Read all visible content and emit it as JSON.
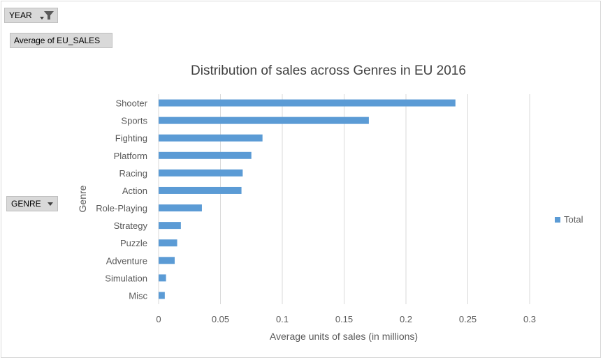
{
  "controls": {
    "year_label": "YEAR",
    "measure_label": "Average of EU_SALES",
    "genre_label": "GENRE"
  },
  "colors": {
    "bar": "#5b9bd5",
    "grid": "#d9d9d9",
    "text": "#595959",
    "title": "#404040"
  },
  "chart_data": {
    "type": "bar",
    "orientation": "horizontal",
    "title": "Distribution of sales across Genres in EU 2016",
    "xlabel": "Average units of sales (in millions)",
    "ylabel": "Genre",
    "xlim": [
      0,
      0.3
    ],
    "xticks": [
      0,
      0.05,
      0.1,
      0.15,
      0.2,
      0.25,
      0.3
    ],
    "xtick_labels": [
      "0",
      "0.05",
      "0.1",
      "0.15",
      "0.2",
      "0.25",
      "0.3"
    ],
    "grid": "vertical",
    "legend_position": "right",
    "categories": [
      "Shooter",
      "Sports",
      "Fighting",
      "Platform",
      "Racing",
      "Action",
      "Role-Playing",
      "Strategy",
      "Puzzle",
      "Adventure",
      "Simulation",
      "Misc"
    ],
    "series": [
      {
        "name": "Total",
        "values": [
          0.24,
          0.17,
          0.084,
          0.075,
          0.068,
          0.067,
          0.035,
          0.018,
          0.015,
          0.013,
          0.006,
          0.005
        ]
      }
    ]
  }
}
